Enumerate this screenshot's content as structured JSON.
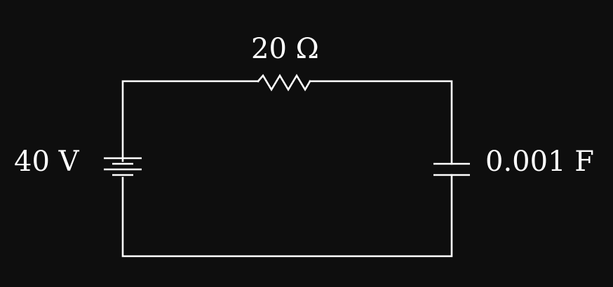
{
  "components": {
    "battery": {
      "label": "40 V"
    },
    "resistor": {
      "label": "20 Ω"
    },
    "capacitor": {
      "label": "0.001 F"
    }
  },
  "colors": {
    "background": "#0e0e0e",
    "wire": "#ffffff",
    "text": "#ffffff"
  }
}
